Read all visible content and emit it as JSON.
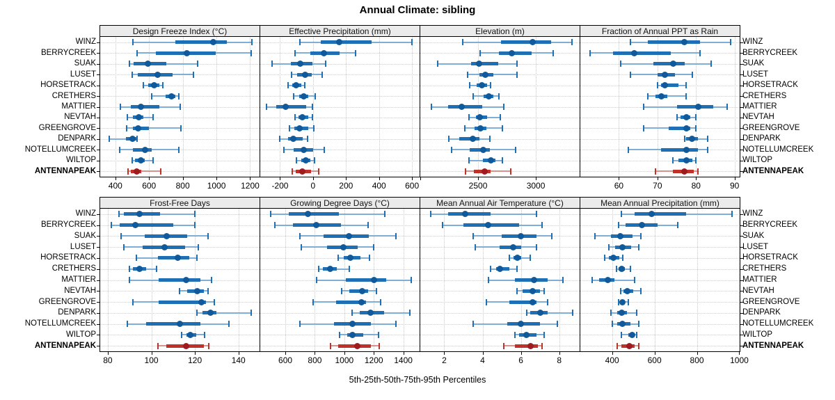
{
  "chart_data": {
    "type": "dotplot",
    "title": "Annual Climate: sibling",
    "caption": "5th-25th-50th-75th-95th Percentiles",
    "percentiles": [
      5,
      25,
      50,
      75,
      95
    ],
    "grid": "dotted",
    "legend_position": "none",
    "sites": [
      "WINZ",
      "BERRYCREEK",
      "SUAK",
      "LUSET",
      "HORSETRACK",
      "CRETHERS",
      "MATTIER",
      "NEVTAH",
      "GREENGROVE",
      "DENPARK",
      "NOTELLUMCREEK",
      "WILTOP",
      "ANTENNAPEAK"
    ],
    "highlight_site": "ANTENNAPEAK",
    "colors": {
      "normal": {
        "light": "#7FAFD6",
        "main": "#1F6FB4",
        "dark": "#10599B"
      },
      "highlight": {
        "light": "#D8928D",
        "main": "#BE3229",
        "dark": "#9E1B20"
      },
      "strip_bg": "#EBEBEB",
      "grid_line": "#C8C8C8",
      "panel_border": "#000000"
    },
    "panels": [
      {
        "title": "Design Freeze Index (°C)",
        "grid_row": 0,
        "grid_col": 0,
        "xlim": [
          310,
          1260
        ],
        "ticks": [
          400,
          600,
          800,
          1000,
          1200
        ],
        "minor_ticks": [],
        "values": [
          [
            505,
            755,
            980,
            1060,
            1210
          ],
          [
            530,
            640,
            825,
            995,
            1205
          ],
          [
            483,
            508,
            592,
            703,
            888
          ],
          [
            500,
            535,
            650,
            740,
            865
          ],
          [
            568,
            595,
            632,
            662,
            680
          ],
          [
            615,
            700,
            733,
            755,
            775
          ],
          [
            430,
            490,
            553,
            663,
            783
          ],
          [
            470,
            505,
            540,
            567,
            625
          ],
          [
            465,
            505,
            535,
            598,
            790
          ],
          [
            363,
            463,
            504,
            524,
            529
          ],
          [
            427,
            505,
            575,
            615,
            775
          ],
          [
            500,
            517,
            550,
            575,
            625
          ],
          [
            474,
            490,
            525,
            553,
            670
          ]
        ]
      },
      {
        "title": "Effective Precipitation (mm)",
        "grid_row": 0,
        "grid_col": 1,
        "xlim": [
          -320,
          650
        ],
        "ticks": [
          -200,
          0,
          200,
          400,
          600
        ],
        "minor_ticks": [],
        "values": [
          [
            -78,
            45,
            157,
            355,
            600
          ],
          [
            -110,
            -15,
            64,
            160,
            258
          ],
          [
            -248,
            -135,
            -78,
            -3,
            77
          ],
          [
            -131,
            -95,
            -46,
            -6,
            55
          ],
          [
            -150,
            -124,
            -102,
            -70,
            -49
          ],
          [
            -118,
            -85,
            -56,
            -27,
            12
          ],
          [
            -282,
            -222,
            -164,
            -42,
            -3
          ],
          [
            -111,
            -89,
            -66,
            -27,
            -3
          ],
          [
            -142,
            -114,
            -80,
            -30,
            6
          ],
          [
            -200,
            -150,
            -118,
            -63,
            -34
          ],
          [
            -176,
            -118,
            -56,
            2,
            67
          ],
          [
            -99,
            -70,
            -42,
            -17,
            9
          ],
          [
            -124,
            -103,
            -63,
            -13,
            33
          ]
        ]
      },
      {
        "title": "Elevation (m)",
        "grid_row": 0,
        "grid_col": 2,
        "xlim": [
          2000,
          3385
        ],
        "ticks": [
          2500,
          3000
        ],
        "minor_ticks": [
          2000
        ],
        "values": [
          [
            2370,
            2700,
            2970,
            3135,
            3310
          ],
          [
            2515,
            2680,
            2790,
            2965,
            3150
          ],
          [
            2150,
            2440,
            2510,
            2675,
            2835
          ],
          [
            2410,
            2510,
            2565,
            2630,
            2835
          ],
          [
            2425,
            2490,
            2535,
            2580,
            2610
          ],
          [
            2455,
            2550,
            2595,
            2630,
            2680
          ],
          [
            2095,
            2240,
            2360,
            2535,
            2720
          ],
          [
            2420,
            2480,
            2515,
            2580,
            2690
          ],
          [
            2385,
            2470,
            2520,
            2570,
            2710
          ],
          [
            2245,
            2340,
            2455,
            2510,
            2600
          ],
          [
            2270,
            2430,
            2545,
            2600,
            2825
          ],
          [
            2420,
            2540,
            2610,
            2650,
            2710
          ],
          [
            2390,
            2465,
            2560,
            2610,
            2785
          ]
        ]
      },
      {
        "title": "Fraction of Annual PPT as Rain",
        "grid_row": 0,
        "grid_col": 3,
        "xlim": [
          50,
          91.5
        ],
        "ticks": [
          60,
          70,
          80,
          90
        ],
        "minor_ticks": [],
        "values": [
          [
            63,
            67.5,
            77,
            81,
            89
          ],
          [
            52.5,
            58.5,
            64,
            73.5,
            81
          ],
          [
            60.5,
            69,
            74,
            77,
            84
          ],
          [
            63,
            70,
            72,
            74.5,
            79
          ],
          [
            70,
            71,
            72,
            75.5,
            77.5
          ],
          [
            67.5,
            69.5,
            71,
            72.5,
            77.5
          ],
          [
            66.5,
            75,
            80.5,
            84.5,
            88
          ],
          [
            75,
            76,
            77.5,
            78.5,
            80
          ],
          [
            66.5,
            73,
            77.5,
            78.5,
            80
          ],
          [
            77,
            77.5,
            79,
            80.5,
            83
          ],
          [
            62.5,
            71,
            77.5,
            80.5,
            83
          ],
          [
            74,
            75.5,
            77.5,
            79,
            80
          ],
          [
            69.5,
            74,
            77,
            79.5,
            80.5
          ]
        ]
      },
      {
        "title": "Frost-Free Days",
        "grid_row": 1,
        "grid_col": 0,
        "xlim": [
          76.5,
          150
        ],
        "ticks": [
          80,
          100,
          120,
          140
        ],
        "minor_ticks": [],
        "values": [
          [
            85,
            87.5,
            94.5,
            104,
            120
          ],
          [
            81.5,
            85.5,
            92.5,
            110,
            120
          ],
          [
            86,
            97,
            107,
            116.5,
            126
          ],
          [
            87.5,
            96,
            106,
            115.5,
            121.5
          ],
          [
            93,
            103,
            112,
            117.5,
            121
          ],
          [
            90,
            91.5,
            94.5,
            97.5,
            102.5
          ],
          [
            90,
            103.5,
            116,
            122.5,
            127.5
          ],
          [
            113,
            116.5,
            121,
            124,
            126
          ],
          [
            91.5,
            103.5,
            123,
            125,
            129
          ],
          [
            121,
            123.5,
            127,
            130,
            146
          ],
          [
            89,
            97.5,
            113,
            122.5,
            135.5
          ],
          [
            114,
            116,
            118,
            120.5,
            124.5
          ],
          [
            103,
            107,
            116,
            124,
            126.5
          ]
        ]
      },
      {
        "title": "Growing Degree Days (°C)",
        "grid_row": 1,
        "grid_col": 1,
        "xlim": [
          430,
          1515
        ],
        "ticks": [
          600,
          800,
          1000,
          1200,
          1400
        ],
        "minor_ticks": [],
        "values": [
          [
            500,
            625,
            755,
            965,
            1275
          ],
          [
            530,
            650,
            810,
            975,
            1160
          ],
          [
            700,
            860,
            1030,
            1165,
            1350
          ],
          [
            710,
            885,
            995,
            1090,
            1200
          ],
          [
            960,
            995,
            1040,
            1110,
            1170
          ],
          [
            825,
            855,
            905,
            950,
            1035
          ],
          [
            810,
            1010,
            1200,
            1285,
            1455
          ],
          [
            980,
            1035,
            1120,
            1160,
            1220
          ],
          [
            790,
            945,
            1115,
            1145,
            1245
          ],
          [
            1055,
            1105,
            1180,
            1270,
            1445
          ],
          [
            700,
            930,
            1055,
            1180,
            1350
          ],
          [
            970,
            1020,
            1055,
            1130,
            1230
          ],
          [
            905,
            960,
            1090,
            1180,
            1235
          ]
        ]
      },
      {
        "title": "Mean Annual Air Temperature (°C)",
        "grid_row": 1,
        "grid_col": 2,
        "xlim": [
          0.75,
          9.1
        ],
        "ticks": [
          2,
          4,
          6,
          8
        ],
        "minor_ticks": [],
        "values": [
          [
            1.3,
            2.2,
            3.1,
            4.4,
            6.8
          ],
          [
            1.9,
            3.0,
            4.3,
            5.9,
            7.1
          ],
          [
            3.5,
            5.0,
            6.0,
            6.8,
            7.6
          ],
          [
            3.6,
            4.9,
            5.6,
            6.0,
            6.8
          ],
          [
            5.4,
            5.6,
            5.8,
            6.0,
            6.5
          ],
          [
            4.4,
            4.7,
            4.9,
            5.4,
            5.8
          ],
          [
            4.3,
            5.7,
            6.7,
            7.4,
            8.2
          ],
          [
            5.8,
            6.1,
            6.6,
            7.0,
            7.2
          ],
          [
            4.2,
            5.4,
            6.6,
            6.8,
            7.4
          ],
          [
            6.3,
            6.5,
            7.0,
            7.4,
            8.7
          ],
          [
            3.5,
            5.3,
            6.0,
            7.0,
            7.9
          ],
          [
            5.7,
            5.9,
            6.3,
            6.8,
            7.2
          ],
          [
            5.1,
            5.7,
            6.5,
            6.9,
            7.1
          ]
        ]
      },
      {
        "title": "Mean Annual Precipitation (mm)",
        "grid_row": 1,
        "grid_col": 3,
        "xlim": [
          250,
          1005
        ],
        "ticks": [
          400,
          600,
          800,
          1000
        ],
        "minor_ticks": [],
        "values": [
          [
            445,
            505,
            585,
            750,
            965
          ],
          [
            430,
            465,
            540,
            615,
            710
          ],
          [
            320,
            395,
            440,
            495,
            535
          ],
          [
            385,
            415,
            450,
            490,
            525
          ],
          [
            365,
            385,
            405,
            435,
            450
          ],
          [
            420,
            430,
            445,
            460,
            485
          ],
          [
            305,
            340,
            380,
            410,
            505
          ],
          [
            440,
            455,
            470,
            500,
            535
          ],
          [
            430,
            440,
            450,
            460,
            475
          ],
          [
            395,
            425,
            445,
            470,
            515
          ],
          [
            400,
            425,
            450,
            485,
            525
          ],
          [
            445,
            475,
            495,
            505,
            515
          ],
          [
            425,
            445,
            480,
            505,
            525
          ]
        ]
      }
    ]
  }
}
